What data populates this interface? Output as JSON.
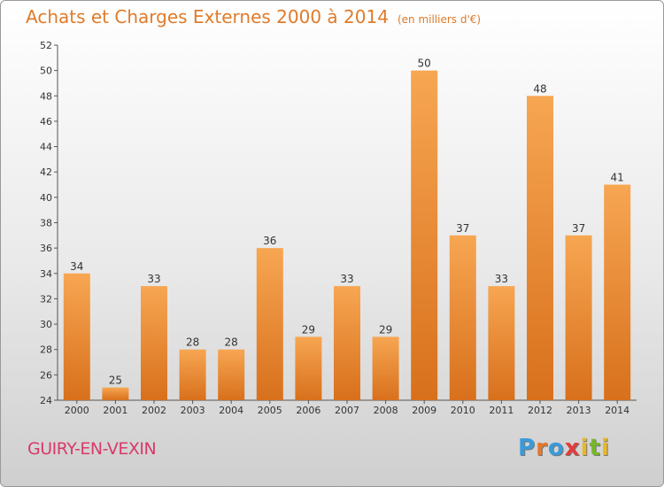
{
  "header": {
    "title": "Achats et Charges Externes 2000 à 2014",
    "subtitle": "(en milliers d'€)"
  },
  "footer": {
    "commune": "GUIRY-EN-VEXIN"
  },
  "logo": {
    "text": "Proxiti",
    "letters": [
      "P",
      "r",
      "o",
      "x",
      "i",
      "t",
      "i"
    ],
    "colors": [
      "#3a9bd9",
      "#e8772a",
      "#3a9bd9",
      "#e23c3c",
      "#e8b82a",
      "#7ab52f",
      "#e8b82a"
    ]
  },
  "chart_data": {
    "type": "bar",
    "categories": [
      "2000",
      "2001",
      "2002",
      "2003",
      "2004",
      "2005",
      "2006",
      "2007",
      "2008",
      "2009",
      "2010",
      "2011",
      "2012",
      "2013",
      "2014"
    ],
    "values": [
      34,
      25,
      33,
      28,
      28,
      36,
      29,
      33,
      29,
      50,
      37,
      33,
      48,
      37,
      41
    ],
    "ylim": [
      24,
      52
    ],
    "yticks": [
      24,
      26,
      28,
      30,
      32,
      34,
      36,
      38,
      40,
      42,
      44,
      46,
      48,
      50,
      52
    ],
    "grid": false,
    "bar_color": "#e8832f"
  }
}
